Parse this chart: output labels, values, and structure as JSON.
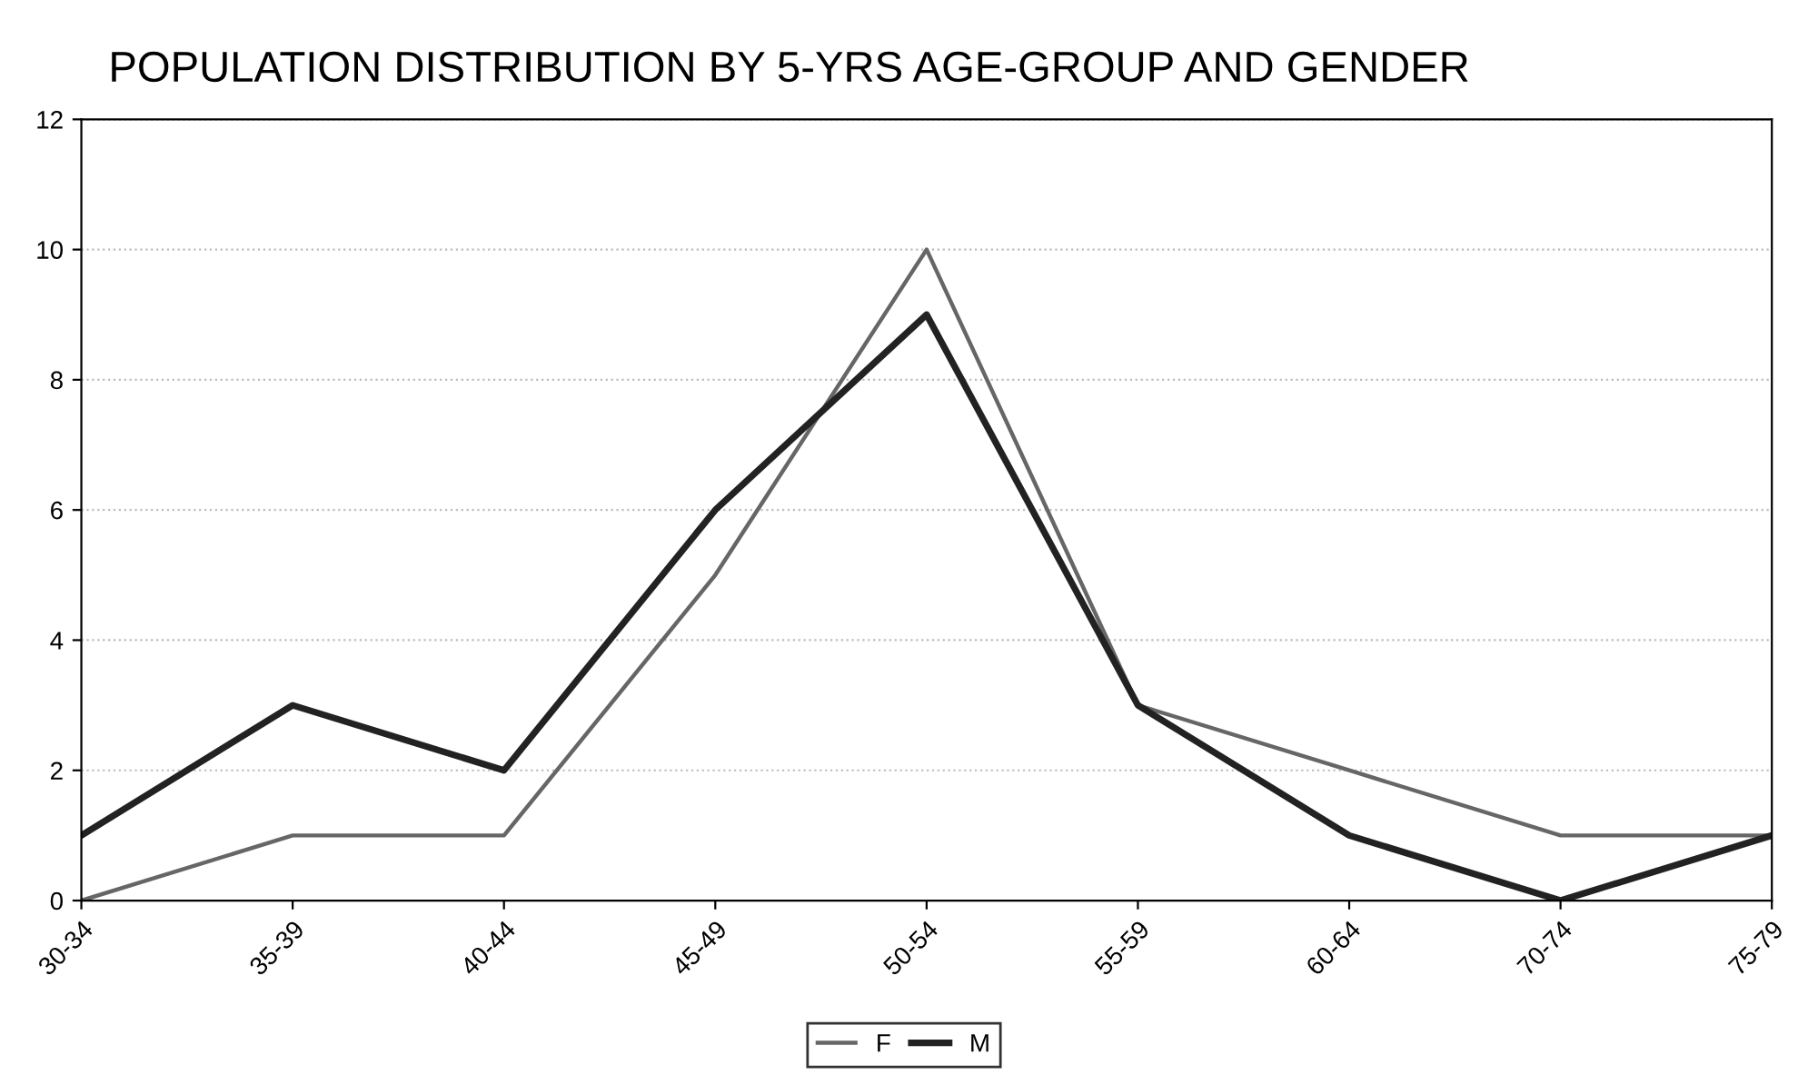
{
  "chart_data": {
    "type": "line",
    "title": "POPULATION DISTRIBUTION BY 5-YRS AGE-GROUP AND GENDER",
    "categories": [
      "30-34",
      "35-39",
      "40-44",
      "45-49",
      "50-54",
      "55-59",
      "60-64",
      "70-74",
      "75-79"
    ],
    "series": [
      {
        "name": "F",
        "color": "#666666",
        "values": [
          0,
          1,
          1,
          5,
          10,
          3,
          2,
          1,
          1
        ]
      },
      {
        "name": "M",
        "color": "#222222",
        "values": [
          1,
          3,
          2,
          6,
          9,
          3,
          1,
          0,
          1
        ]
      }
    ],
    "ylim": [
      0,
      12
    ],
    "yticks": [
      0,
      2,
      4,
      6,
      8,
      10,
      12
    ],
    "grid": "y",
    "legend": "bottom",
    "marker": "none",
    "line_style": "solid"
  }
}
